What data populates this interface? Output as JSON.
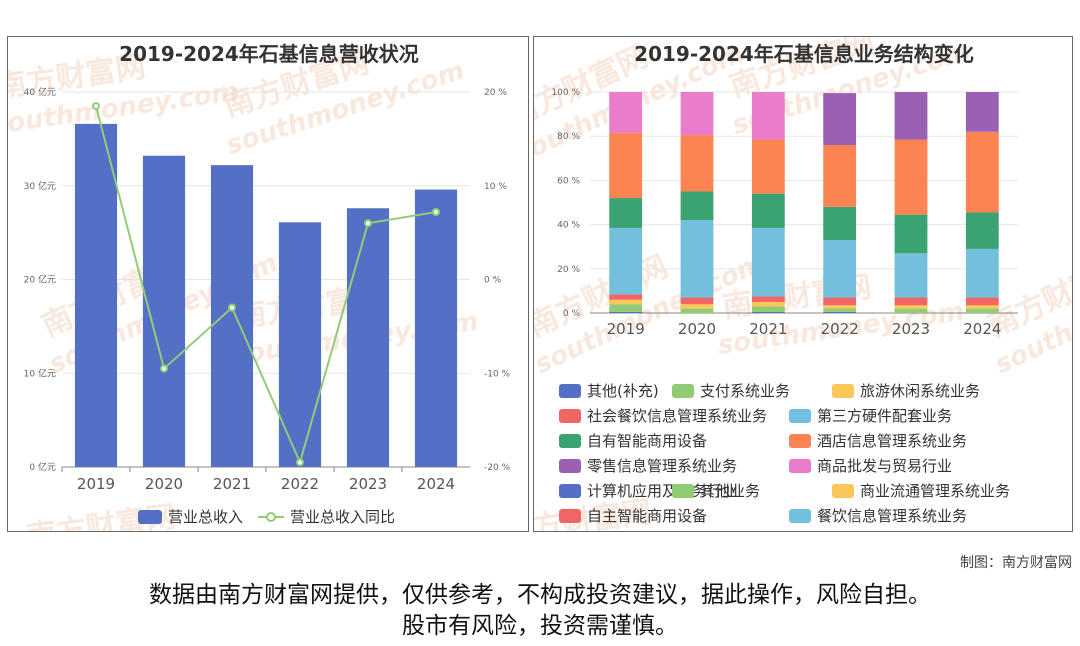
{
  "chart_data": [
    {
      "type": "bar",
      "title": "2019-2024年石基信息营收状况",
      "categories": [
        "2019",
        "2020",
        "2021",
        "2022",
        "2023",
        "2024"
      ],
      "y_left": {
        "ticks": [
          "0 亿元",
          "10 亿元",
          "20 亿元",
          "30 亿元",
          "40 亿元"
        ],
        "range": [
          0,
          40
        ]
      },
      "y_right": {
        "ticks": [
          "-20 %",
          "-10 %",
          "0 %",
          "10 %",
          "20 %"
        ],
        "range": [
          -20,
          20
        ]
      },
      "series": [
        {
          "name": "营业总收入",
          "type": "bar",
          "axis": "left",
          "color": "#5470c6",
          "values": [
            36.6,
            33.2,
            32.2,
            26.1,
            27.6,
            29.6
          ]
        },
        {
          "name": "营业总收入同比",
          "type": "line",
          "axis": "right",
          "color": "#91cc75",
          "values": [
            18.5,
            -9.5,
            -3.0,
            -19.5,
            6.0,
            7.2
          ]
        }
      ],
      "legend_position": "bottom",
      "grid": true
    },
    {
      "type": "bar",
      "stacked": true,
      "title": "2019-2024年石基信息业务结构变化",
      "categories": [
        "2019",
        "2020",
        "2021",
        "2022",
        "2023",
        "2024"
      ],
      "y_ticks": [
        "0 %",
        "20 %",
        "40 %",
        "60 %",
        "80 %",
        "100 %"
      ],
      "ylim": [
        0,
        100
      ],
      "series": [
        {
          "name": "其他(补充)",
          "color": "#5470c6",
          "values": [
            0.5,
            0.0,
            0.5,
            0.5,
            0.0,
            0.0
          ]
        },
        {
          "name": "支付系统业务",
          "color": "#91cc75",
          "values": [
            3.5,
            2.0,
            2.5,
            1.5,
            2.0,
            2.0
          ]
        },
        {
          "name": "旅游休闲系统业务",
          "color": "#fac858",
          "values": [
            2.0,
            2.0,
            2.0,
            1.5,
            1.5,
            1.5
          ]
        },
        {
          "name": "社会餐饮信息管理系统业务",
          "color": "#ee6666",
          "values": [
            2.5,
            3.0,
            2.5,
            3.5,
            3.5,
            3.5
          ]
        },
        {
          "name": "第三方硬件配套业务",
          "color": "#73c0de",
          "values": [
            30.0,
            35.0,
            31.0,
            26.0,
            20.0,
            22.0
          ]
        },
        {
          "name": "自有智能商用设备",
          "color": "#3ba272",
          "values": [
            13.5,
            13.0,
            15.5,
            15.0,
            17.5,
            16.5
          ]
        },
        {
          "name": "酒店信息管理系统业务",
          "color": "#fc8452",
          "values": [
            29.5,
            25.5,
            24.5,
            28.0,
            34.0,
            36.5
          ]
        },
        {
          "name": "零售信息管理系统业务",
          "color": "#9a60b4",
          "values": [
            0.0,
            0.0,
            0.0,
            23.5,
            21.5,
            18.0
          ]
        },
        {
          "name": "商品批发与贸易行业",
          "color": "#ea7ccc",
          "values": [
            18.5,
            19.5,
            21.5,
            0.0,
            0.0,
            0.0
          ]
        },
        {
          "name": "计算机应用及服务行业",
          "color": "#5470c6",
          "values": [
            0,
            0,
            0,
            0,
            0,
            0
          ]
        },
        {
          "name": "其他业务",
          "color": "#91cc75",
          "values": [
            0,
            0,
            0,
            0,
            0,
            0
          ]
        },
        {
          "name": "商业流通管理系统业务",
          "color": "#fac858",
          "values": [
            0,
            0,
            0,
            0,
            0,
            0
          ]
        },
        {
          "name": "自主智能商用设备",
          "color": "#ee6666",
          "values": [
            0,
            0,
            0,
            0,
            0,
            0
          ]
        },
        {
          "name": "餐饮信息管理系统业务",
          "color": "#73c0de",
          "values": [
            0,
            0,
            0,
            0,
            0,
            0
          ]
        }
      ],
      "legend_position": "bottom",
      "grid": true
    }
  ],
  "watermark": {
    "cn": "南方财富网",
    "en": "southmoney.com"
  },
  "footer": {
    "credit": "制图：南方财富网",
    "disclaimer_line1": "数据由南方财富网提供，仅供参考，不构成投资建议，据此操作，风险自担。",
    "disclaimer_line2": "股市有风险，投资需谨慎。"
  }
}
